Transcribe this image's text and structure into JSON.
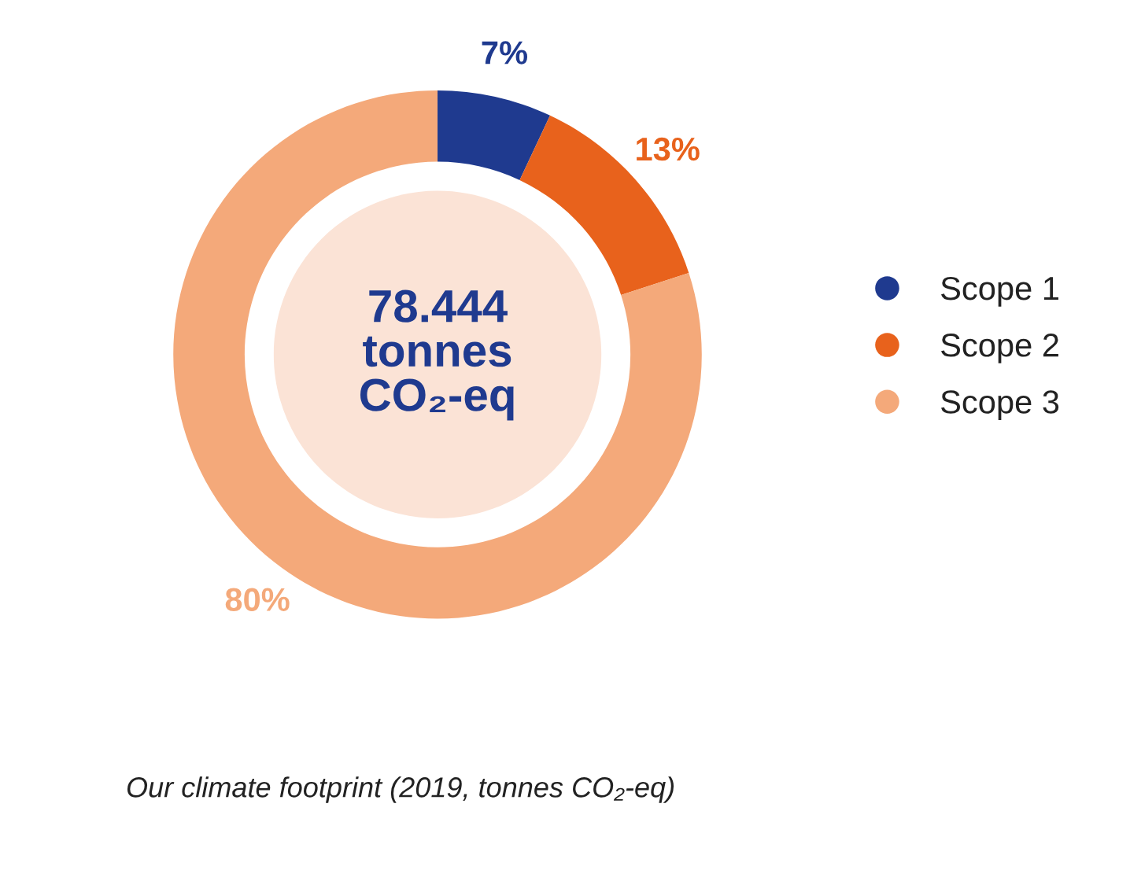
{
  "chart_data": {
    "type": "donut",
    "categories": [
      "Scope 1",
      "Scope 2",
      "Scope 3"
    ],
    "values": [
      7,
      13,
      80
    ],
    "colors": [
      "#1f3a8f",
      "#e8621c",
      "#f4a97a"
    ],
    "value_labels": [
      "7%",
      "13%",
      "80%"
    ],
    "legend": "right",
    "annotations": [
      "78.444\ntonnes\nCO₂-eq",
      "Our climate footprint (2019, tonnes CO₂-eq)"
    ]
  }
}
